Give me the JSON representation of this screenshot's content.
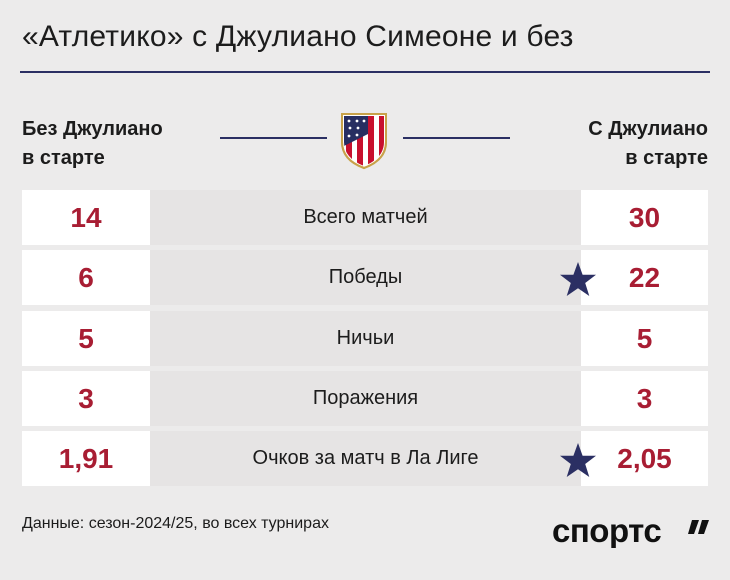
{
  "title": "«Атлетико» с Джулиано Симеоне и без",
  "header": {
    "left_line1": "Без Джулиано",
    "left_line2": "в старте",
    "right_line1": "С Джулиано",
    "right_line2": "в старте",
    "crest_icon": "atletico-madrid-crest"
  },
  "rows": [
    {
      "label": "Всего матчей",
      "without": "14",
      "with": "30",
      "star": false
    },
    {
      "label": "Победы",
      "without": "6",
      "with": "22",
      "star": true
    },
    {
      "label": "Ничьи",
      "without": "5",
      "with": "5",
      "star": false
    },
    {
      "label": "Поражения",
      "without": "3",
      "with": "3",
      "star": false
    },
    {
      "label": "Очков за матч в Ла Лиге",
      "without": "1,91",
      "with": "2,05",
      "star": true
    }
  ],
  "footnote": "Данные: сезон-2024/25, во всех турнирах",
  "brand": "спортс’’",
  "colors": {
    "accent_red": "#a81d33",
    "navy": "#2b2f63",
    "background": "#ecebeb"
  }
}
